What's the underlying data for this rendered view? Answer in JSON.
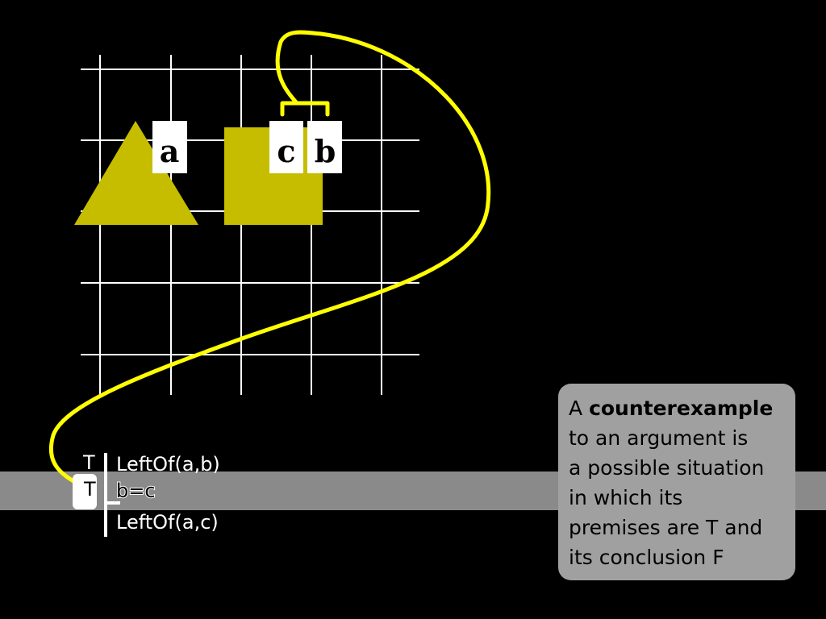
{
  "world": {
    "labels": {
      "a": "a",
      "c": "c",
      "b": "b"
    },
    "shape_color": "#c6bd00",
    "line_color": "#ffff00",
    "grid_color": "#ffffff"
  },
  "proof": {
    "premise1_value": "T",
    "premise1": "LeftOf(a,b)",
    "premise2_value": "T",
    "premise2": "b=c",
    "conclusion": "LeftOf(a,c)"
  },
  "callout": {
    "word_a": "A",
    "term": "counterexample",
    "rest_line1": "to an argument is",
    "rest_line2": "a possible situation",
    "rest_line3": "in which its",
    "rest_line4": "premises are T and",
    "rest_line5": "its conclusion F"
  }
}
